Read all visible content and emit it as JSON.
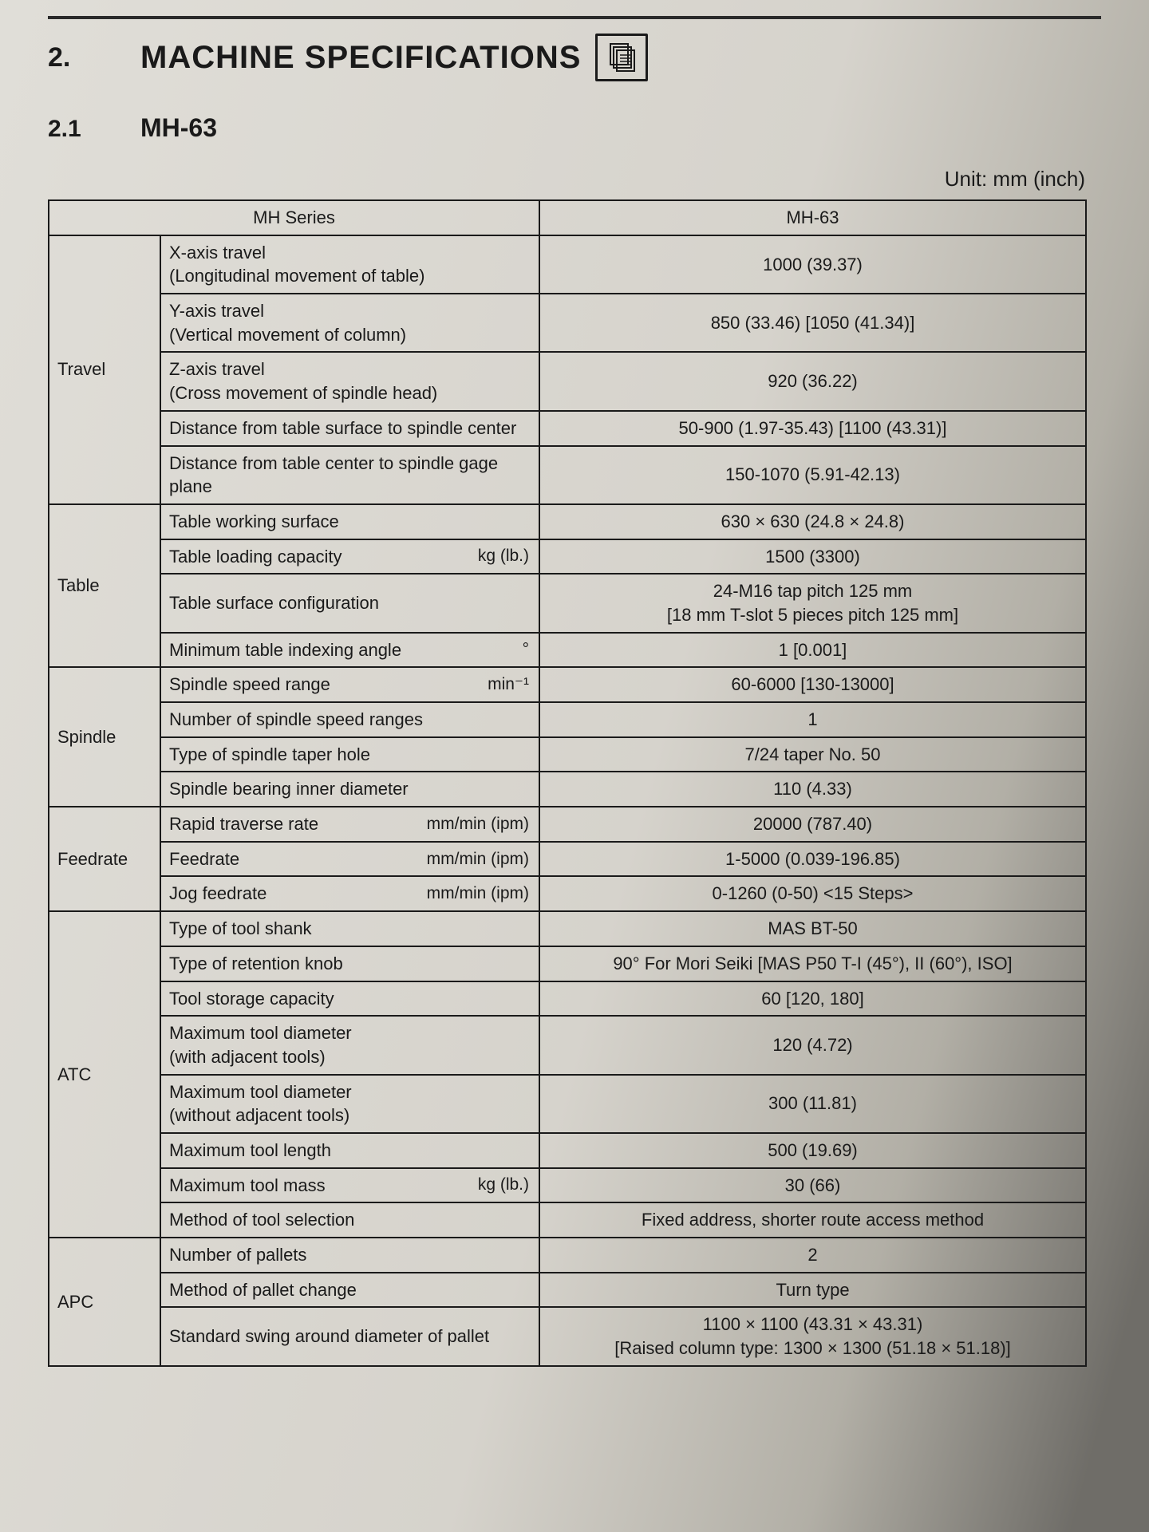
{
  "heading": {
    "section_number": "2.",
    "title": "MACHINE SPECIFICATIONS",
    "sub_number": "2.1",
    "sub_title": "MH-63",
    "unit_label": "Unit:  mm (inch)"
  },
  "table": {
    "col_series": "MH Series",
    "col_model": "MH-63",
    "groups": [
      {
        "category": "Travel",
        "rows": [
          {
            "param": "X-axis travel\n(Longitudinal movement of table)",
            "value": "1000 (39.37)"
          },
          {
            "param": "Y-axis travel\n(Vertical movement of column)",
            "value": "850 (33.46) [1050 (41.34)]"
          },
          {
            "param": "Z-axis travel\n(Cross movement of spindle head)",
            "value": "920 (36.22)"
          },
          {
            "param": "Distance from table surface to spindle center",
            "value": "50-900 (1.97-35.43) [1100 (43.31)]"
          },
          {
            "param": "Distance from table center to spindle gage plane",
            "value": "150-1070 (5.91-42.13)"
          }
        ]
      },
      {
        "category": "Table",
        "rows": [
          {
            "param": "Table working surface",
            "value": "630 × 630 (24.8 × 24.8)"
          },
          {
            "param": "Table loading capacity",
            "unit": "kg (lb.)",
            "value": "1500 (3300)"
          },
          {
            "param": "Table surface configuration",
            "value": "24-M16 tap pitch 125 mm\n[18 mm T-slot 5 pieces pitch 125 mm]"
          },
          {
            "param": "Minimum table indexing angle",
            "unit": "°",
            "value": "1 [0.001]"
          }
        ]
      },
      {
        "category": "Spindle",
        "rows": [
          {
            "param": "Spindle speed range",
            "unit": "min⁻¹",
            "value": "60-6000 [130-13000]"
          },
          {
            "param": "Number of spindle speed ranges",
            "value": "1"
          },
          {
            "param": "Type of spindle taper hole",
            "value": "7/24 taper No. 50"
          },
          {
            "param": "Spindle bearing inner diameter",
            "value": "110 (4.33)"
          }
        ]
      },
      {
        "category": "Feedrate",
        "rows": [
          {
            "param": "Rapid traverse rate",
            "unit": "mm/min (ipm)",
            "value": "20000 (787.40)"
          },
          {
            "param": "Feedrate",
            "unit": "mm/min (ipm)",
            "value": "1-5000 (0.039-196.85)"
          },
          {
            "param": "Jog feedrate",
            "unit": "mm/min (ipm)",
            "value": "0-1260 (0-50) <15 Steps>"
          }
        ]
      },
      {
        "category": "ATC",
        "rows": [
          {
            "param": "Type of tool shank",
            "value": "MAS BT-50"
          },
          {
            "param": "Type of retention knob",
            "value": "90° For Mori Seiki [MAS P50 T-I (45°), II (60°), ISO]"
          },
          {
            "param": "Tool storage capacity",
            "value": "60 [120, 180]"
          },
          {
            "param": "Maximum tool diameter\n(with adjacent tools)",
            "value": "120 (4.72)"
          },
          {
            "param": "Maximum tool diameter\n(without adjacent tools)",
            "value": "300 (11.81)"
          },
          {
            "param": "Maximum tool length",
            "value": "500 (19.69)"
          },
          {
            "param": "Maximum tool mass",
            "unit": "kg (lb.)",
            "value": "30 (66)"
          },
          {
            "param": "Method of tool selection",
            "value": "Fixed address, shorter route access method"
          }
        ]
      },
      {
        "category": "APC",
        "rows": [
          {
            "param": "Number of pallets",
            "value": "2"
          },
          {
            "param": "Method of pallet change",
            "value": "Turn type"
          },
          {
            "param": "Standard swing around diameter of pallet",
            "value": "1100 × 1100 (43.31 × 43.31)\n[Raised column type: 1300 × 1300 (51.18 × 51.18)]"
          }
        ]
      }
    ]
  },
  "style": {
    "text_color": "#1a1a1a",
    "border_color": "#1a1a1a",
    "page_bg_light": "#d9d7cf",
    "page_bg_dark": "#8a8880",
    "heading_fontsize_pt": 30,
    "body_fontsize_pt": 16
  }
}
